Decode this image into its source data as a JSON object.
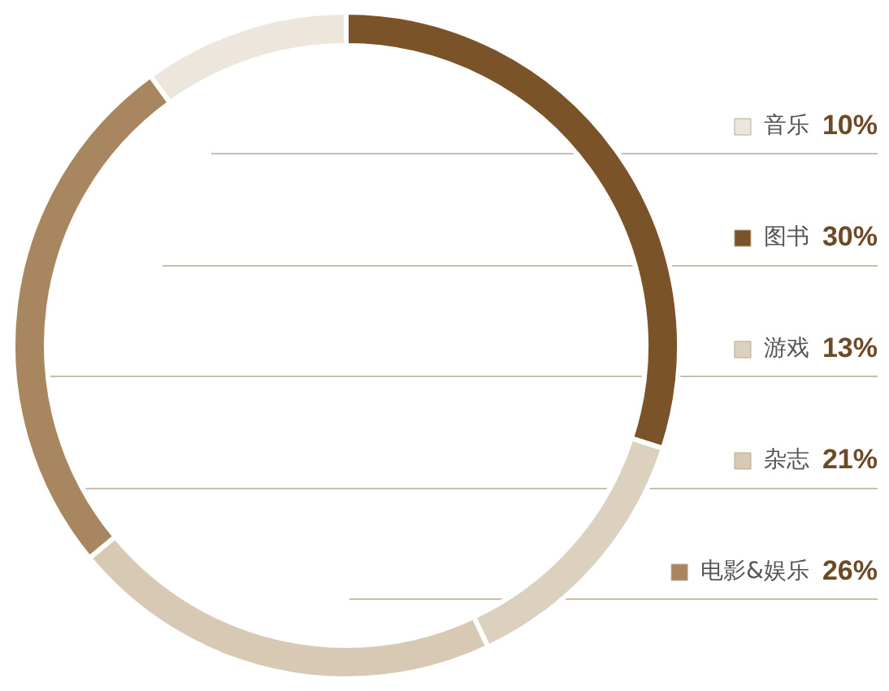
{
  "chart_data": {
    "type": "donut",
    "categories": [
      "音乐",
      "图书",
      "游戏",
      "杂志",
      "电影&娱乐"
    ],
    "values": [
      10,
      30,
      13,
      21,
      26
    ],
    "colors": [
      "#ece6dc",
      "#7a5428",
      "#dcd0bf",
      "#d8c9b4",
      "#a88660"
    ],
    "value_labels": [
      "10%",
      "30%",
      "13%",
      "21%",
      "26%"
    ],
    "legend": "right"
  }
}
